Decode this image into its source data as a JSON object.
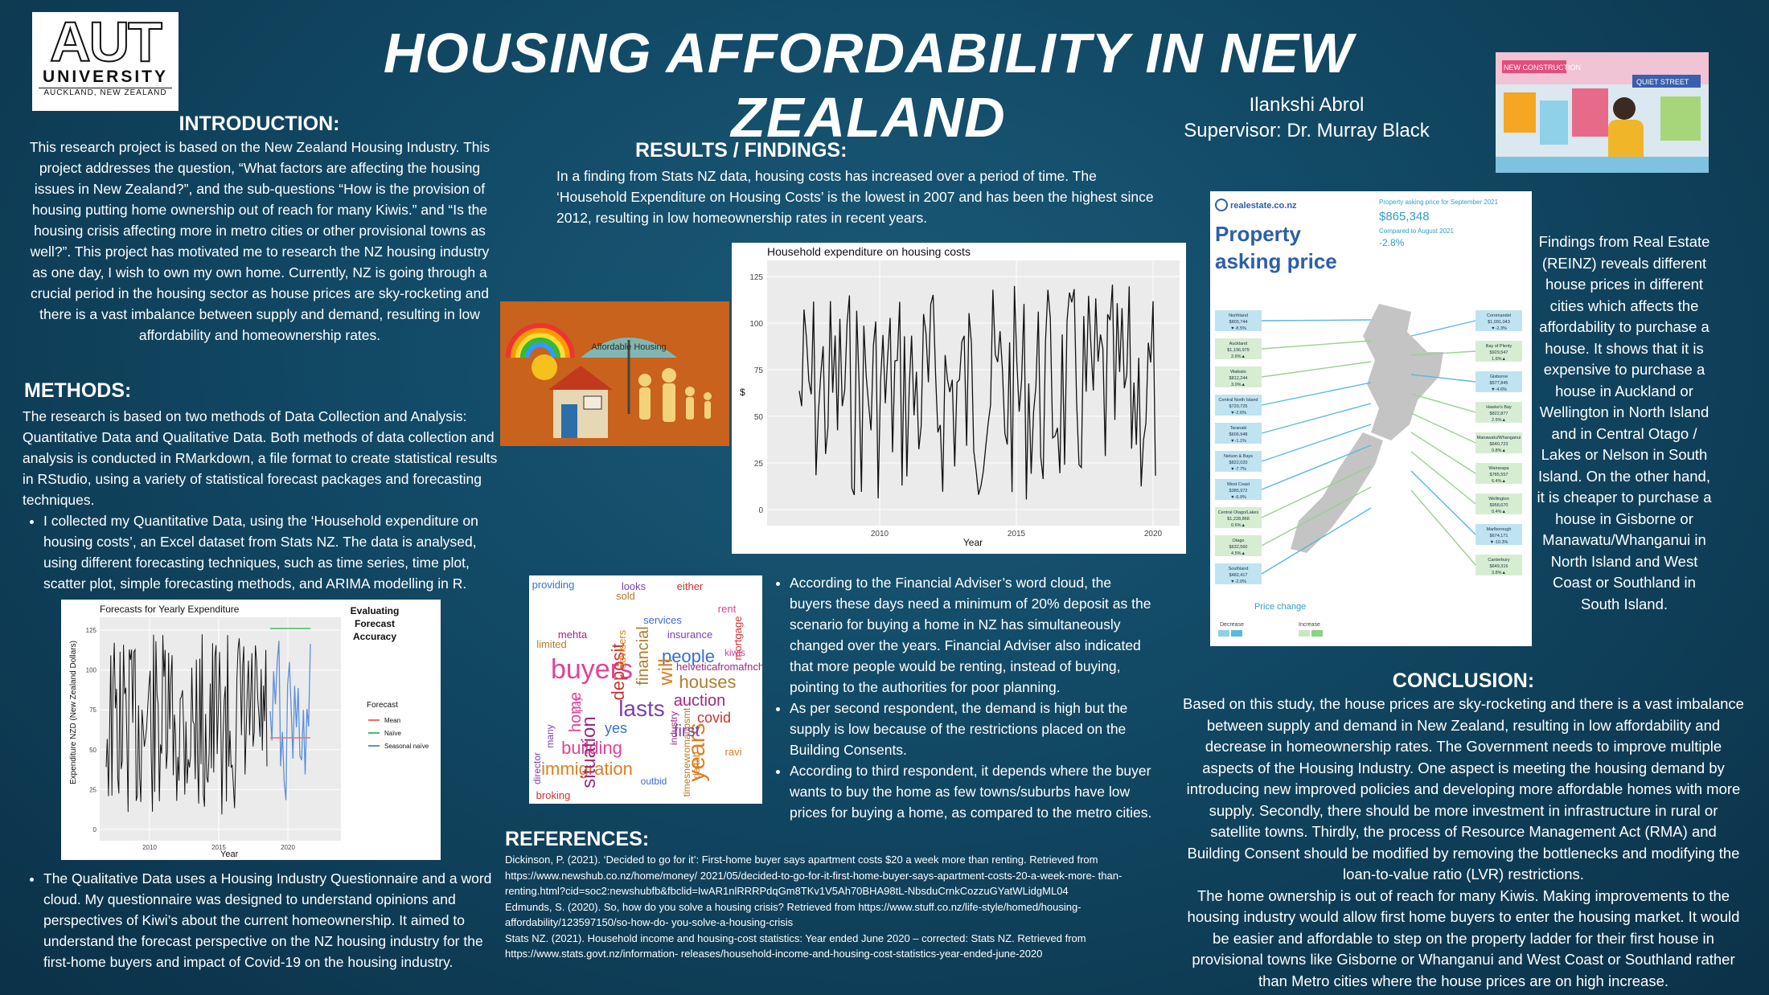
{
  "header": {
    "logo": {
      "main": "AUT",
      "sub": "UNIVERSITY",
      "place": "AUCKLAND, NEW ZEALAND"
    },
    "title": "HOUSING AFFORDABILITY IN NEW ZEALAND",
    "author": "Ilankshi Abrol",
    "supervisor": "Supervisor: Dr. Murray Black"
  },
  "introduction": {
    "heading": "INTRODUCTION:",
    "text": "This research project is based on the New Zealand Housing Industry. This project addresses the question, “What factors are affecting the housing issues in New Zealand?”, and the sub-questions “How is the provision of housing putting home ownership out of reach for many Kiwis.” and “Is the housing crisis affecting more in metro cities or other provisional towns as well?”. This project has motivated me to research the NZ housing industry as one day, I wish to own my own home. Currently, NZ is going through a crucial period in the housing sector as house prices are sky-rocketing and there is a vast imbalance between supply and demand, resulting in low affordability and homeownership rates."
  },
  "methods": {
    "heading": "METHODS:",
    "text": "The research is based on two methods of Data Collection and Analysis: Quantitative Data and Qualitative Data. Both methods of data collection and analysis is conducted in RMarkdown, a file format to create statistical results in RStudio, using a variety of statistical forecast packages and forecasting techniques.",
    "bullet1": "I collected my Quantitative Data, using the ‘Household expenditure on housing costs’, an Excel dataset from Stats NZ. The data is analysed, using different forecasting techniques, such as time series, time plot, scatter plot, simple forecasting methods, and ARIMA modelling in R.",
    "bullet2": "The Qualitative Data uses a Housing Industry Questionnaire and a word cloud. My questionnaire was designed to understand opinions and perspectives of Kiwi’s about the current homeownership. It aimed to understand the forecast perspective on the NZ housing industry for the first-home buyers and impact of Covid-19 on the housing industry."
  },
  "forecast_chart": {
    "title": "Forecasts for Yearly Expenditure",
    "side_title": "Evaluating Forecast Accuracy",
    "ylabel": "Expenditure NZD (New Zealand Dollars)",
    "xlabel": "Year",
    "yticks": [
      "0",
      "25",
      "50",
      "75",
      "100",
      "125"
    ],
    "xticks": [
      "2010",
      "2015",
      "2020"
    ],
    "legend_title": "Forecast",
    "legend": [
      "Mean",
      "Naïve",
      "Seasonal naïve"
    ],
    "colors": {
      "mean": "#e8736b",
      "naive": "#3fbf6b",
      "snaive": "#5b8fdd",
      "data": "#111111"
    }
  },
  "results": {
    "heading": "RESULTS / FINDINGS:",
    "text": "In a finding from Stats NZ data, housing costs has increased over a period of time. The ‘Household Expenditure on Housing Costs’ is the lowest in 2007 and has been the highest since 2012, resulting in low homeownership rates in recent years."
  },
  "affordable_image": {
    "umbrella_label": "Affordable Housing"
  },
  "word_list": [
    "According to the Financial Adviser’s word cloud, the buyers these days need a minimum of 20% deposit as the scenario for buying a home in NZ has simultaneously changed over the years. Financial Adviser also indicated that more people would be renting, instead of buying, pointing to the authorities for poor planning.",
    "As per second respondent, the demand is high but the supply is low because of the restrictions placed on the Building Consents.",
    "According to third respondent, it depends where the buyer wants to buy the home as few towns/suburbs have low prices for buying a home, as compared to the metro cities."
  ],
  "wordcloud": {
    "words": [
      "buyers",
      "years",
      "lasts",
      "deposit",
      "people",
      "houses",
      "auction",
      "building",
      "immigration",
      "first",
      "covid",
      "yes",
      "financial",
      "situation",
      "home",
      "will",
      "lasts",
      "insurance",
      "mortgage",
      "services",
      "limited",
      "mehta",
      "rent",
      "advisers",
      "looks",
      "either",
      "providing",
      "sold",
      "helveticafromafncharset",
      "kiwis",
      "ravi",
      "many",
      "broking",
      "outbid",
      "timesnewromanpsmt",
      "industry",
      "pay",
      "deftab",
      "director",
      "solutions"
    ]
  },
  "references": {
    "heading": "REFERENCES:",
    "items": [
      "Dickinson, P. (2021). ‘Decided to go for it’: First-home buyer says apartment costs $20 a week more than renting. Retrieved from https://www.newshub.co.nz/home/money/ 2021/05/decided-to-go-for-it-first-home-buyer-says-apartment-costs-20-a-week-more- than-renting.html?cid=soc2:newshubfb&fbclid=IwAR1nlRRRPdqGm8TKv1V5Ah70BHA98tL-NbsduCrnkCozzuGYatWLidgML04",
      "Edmunds, S. (2020). So, how do you solve a housing crisis? Retrieved from https://www.stuff.co.nz/life-style/homed/housing-affordability/123597150/so-how-do- you-solve-a-housing-crisis",
      "Stats NZ. (2021). Household income and housing-cost statistics: Year ended June 2020 – corrected: Stats NZ. Retrieved from https://www.stats.govt.nz/information- releases/household-income-and-housing-cost-statistics-year-ended-june-2020"
    ]
  },
  "hh_chart": {
    "title": "Household expenditure on housing costs",
    "ylabel": "$",
    "xlabel": "Year",
    "yticks": [
      "0",
      "25",
      "50",
      "75",
      "100",
      "125"
    ],
    "xticks": [
      "2010",
      "2015",
      "2020"
    ]
  },
  "realestate": {
    "brand": "realestate.co.nz",
    "title": "Property asking price",
    "sept_label": "Property asking price for September 2021",
    "price": "$865,348",
    "compared": "Compared to August 2021",
    "change": "-2.8%",
    "legend_title": "Price change",
    "decrease": "Decrease",
    "increase": "Increase",
    "left_regions": [
      {
        "name": "Northland",
        "price": "$805,744",
        "chg": "▼-8.5%"
      },
      {
        "name": "Auckland",
        "price": "$1,196,975",
        "chg": "2.6%▲"
      },
      {
        "name": "Waikato",
        "price": "$812,244",
        "chg": "3.0%▲"
      },
      {
        "name": "Central North Island",
        "price": "$720,725",
        "chg": "▼-2.6%"
      },
      {
        "name": "Taranaki",
        "price": "$606,948",
        "chg": "▼-1.1%"
      },
      {
        "name": "Nelson & Bays",
        "price": "$822,020",
        "chg": "▼-7.7%"
      },
      {
        "name": "West Coast",
        "price": "$385,972",
        "chg": "▼-6.9%"
      },
      {
        "name": "Central Otago/Lakes",
        "price": "$1,228,868",
        "chg": "0.6%▲"
      },
      {
        "name": "Otago",
        "price": "$632,560",
        "chg": "4.5%▲"
      },
      {
        "name": "Southland",
        "price": "$482,417",
        "chg": "▼-2.0%"
      }
    ],
    "right_regions": [
      {
        "name": "Coromandel",
        "price": "$1,091,043",
        "chg": "▼-2.3%"
      },
      {
        "name": "Bay of Plenty",
        "price": "$929,547",
        "chg": "1.6%▲"
      },
      {
        "name": "Gisborne",
        "price": "$577,845",
        "chg": "▼-4.6%"
      },
      {
        "name": "Hawke's Bay",
        "price": "$822,877",
        "chg": "2.5%▲"
      },
      {
        "name": "Manawatu/Whanganui",
        "price": "$640,723",
        "chg": "0.8%▲"
      },
      {
        "name": "Wairarapa",
        "price": "$785,557",
        "chg": "6.4%▲"
      },
      {
        "name": "Wellington",
        "price": "$958,670",
        "chg": "0.4%▲"
      },
      {
        "name": "Marlborough",
        "price": "$674,171",
        "chg": "▼-10.3%"
      },
      {
        "name": "Canterbury",
        "price": "$649,316",
        "chg": "3.8%▲"
      }
    ]
  },
  "new_construction": {
    "sign1": "NEW CONSTRUCTION",
    "sign2": "QUIET STREET"
  },
  "reinz": "Findings from Real Estate (REINZ) reveals different house prices in different cities which affects the affordability to purchase a house. It shows that it is expensive to purchase a house in Auckland or Wellington in North Island and in Central Otago / Lakes or Nelson in South Island. On the other hand, it is cheaper to purchase a house in Gisborne or Manawatu/Whanganui in North Island and West Coast or Southland in South Island.",
  "conclusion": {
    "heading": "CONCLUSION:",
    "p1": "Based on this study, the house prices are sky-rocketing and there is a vast imbalance between supply and demand in New Zealand, resulting in low affordability and decrease in homeownership rates. The Government needs to improve multiple aspects of the Housing Industry. One aspect is meeting the housing demand by introducing new improved policies and developing more affordable homes with more supply. Secondly, there should be more investment in infrastructure in rural or satellite towns. Thirdly, the process of Resource Management Act (RMA) and Building Consent should be modified by removing the bottlenecks and modifying the loan-to-value ratio (LVR) restrictions.",
    "p2": "The home ownership is out of reach for many Kiwis. Making improvements to the housing industry would allow first home buyers to enter the housing market. It would be easier and affordable to step on the property ladder for their first house in provisional towns like Gisborne or Whanganui and West Coast or Southland rather than Metro cities where the house prices are on high increase."
  }
}
